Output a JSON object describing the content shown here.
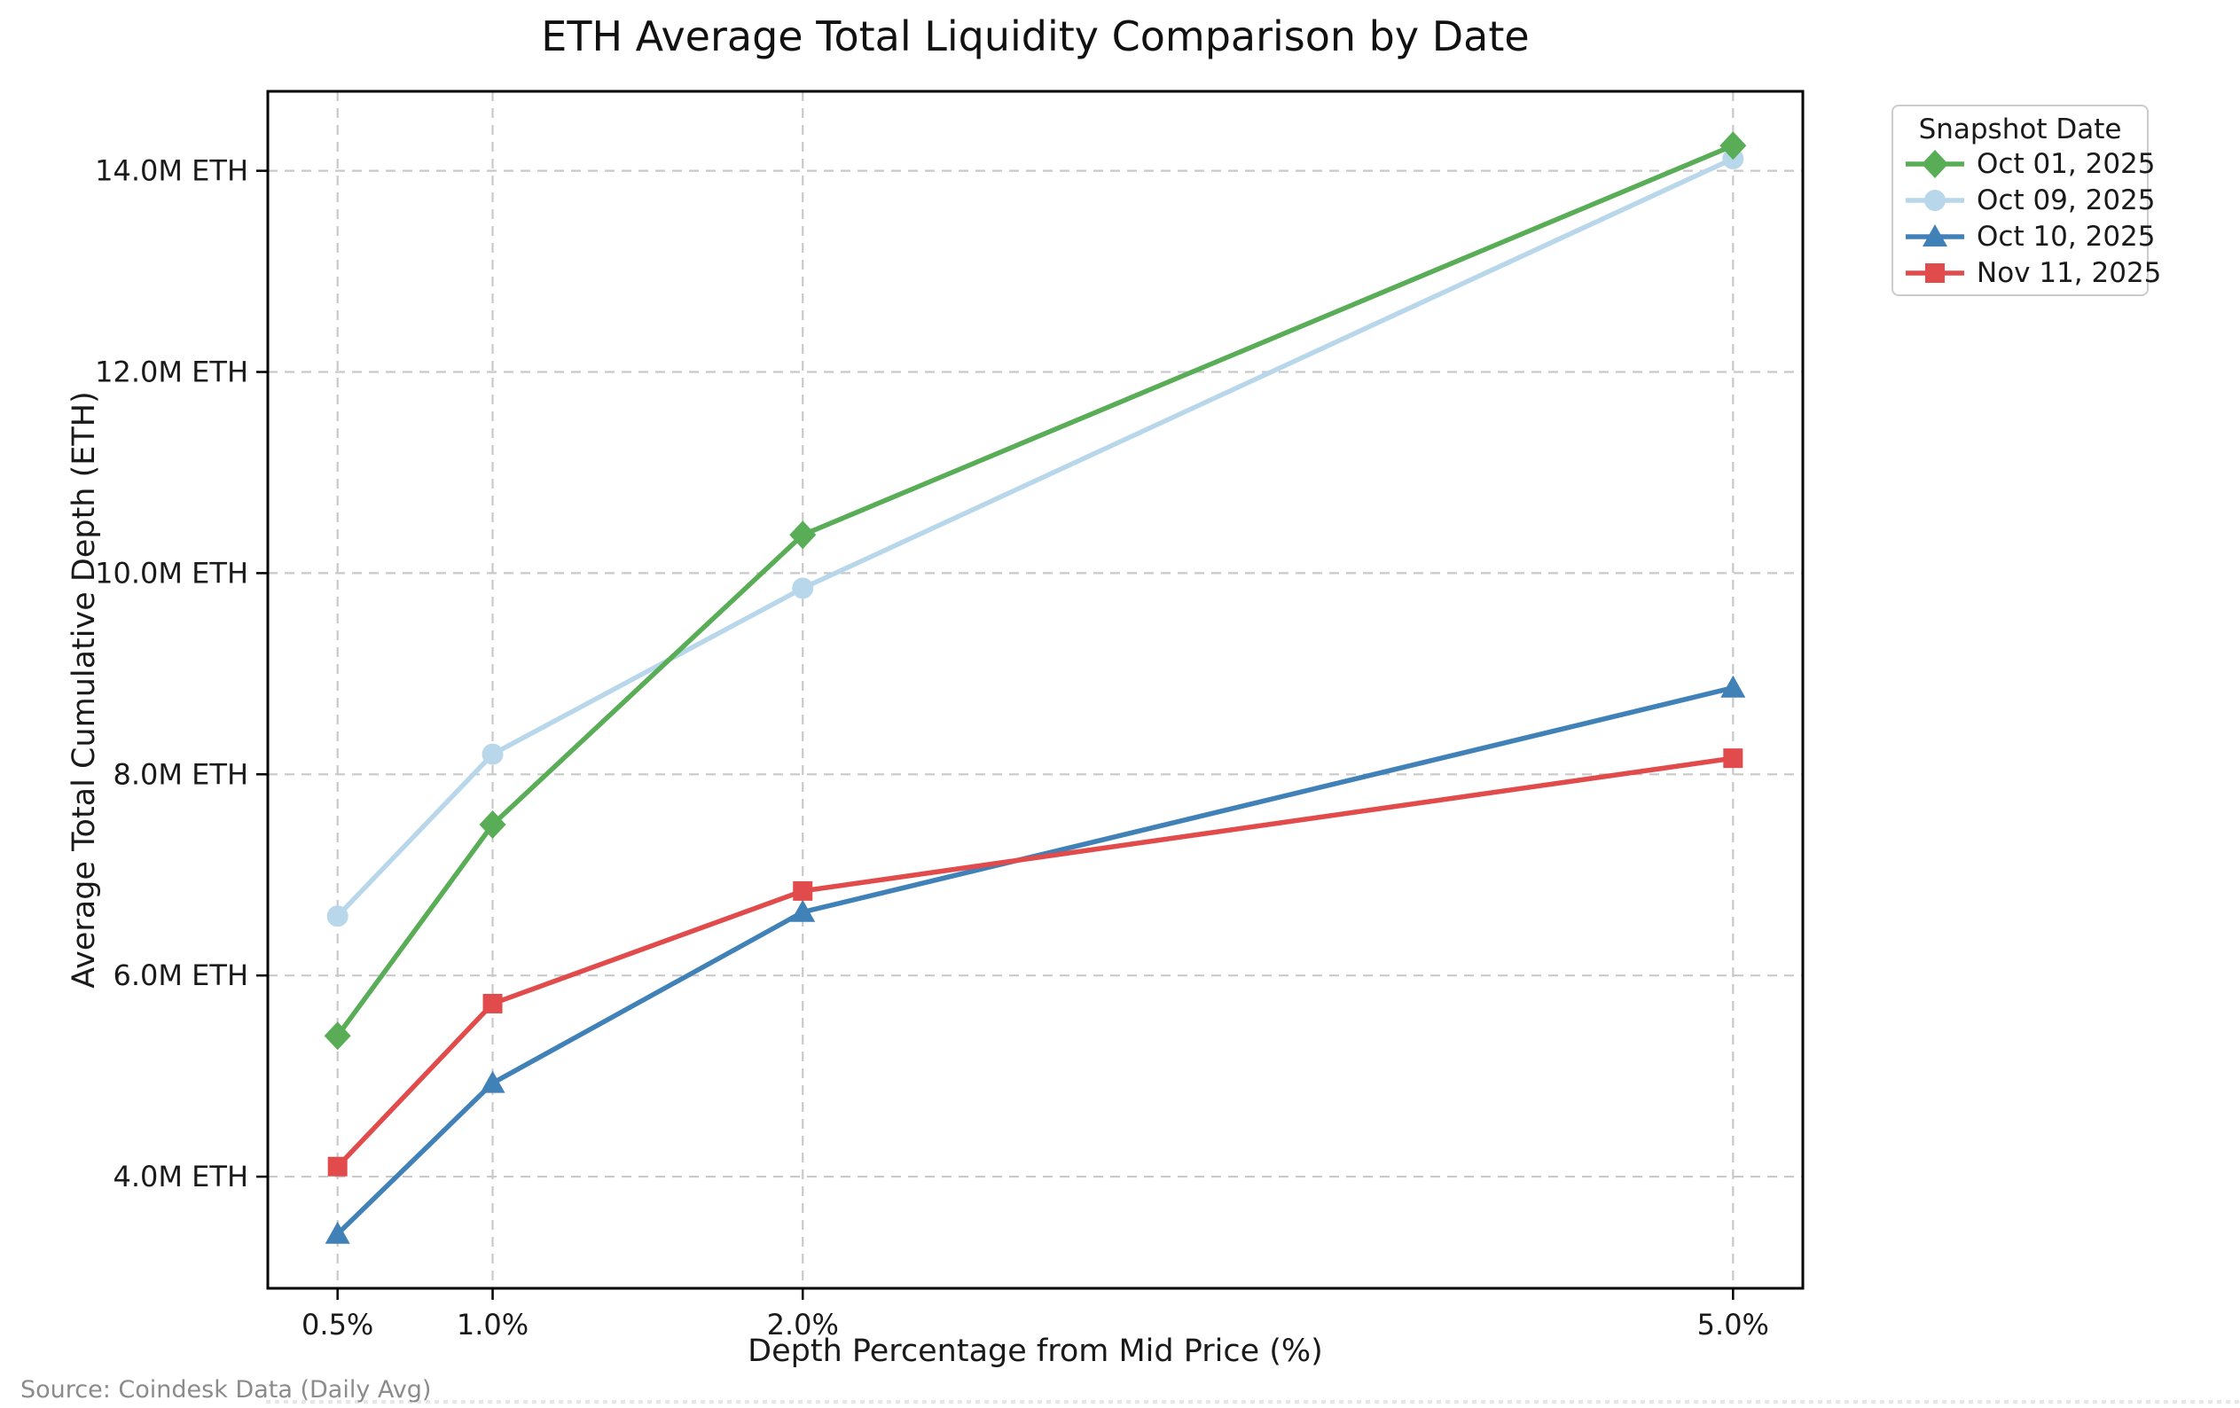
{
  "chart_data": {
    "type": "line",
    "title": "ETH Average Total Liquidity Comparison by Date",
    "xlabel": "Depth Percentage from Mid Price (%)",
    "ylabel": "Average Total Cumulative Depth (ETH)",
    "legend_title": "Snapshot Date",
    "legend_position": "outside upper right",
    "grid": true,
    "grid_style": "dashed",
    "x": [
      0.5,
      1.0,
      2.0,
      5.0
    ],
    "x_tick_labels": [
      "0.5%",
      "1.0%",
      "2.0%",
      "5.0%"
    ],
    "xlim": [
      0.275,
      5.225
    ],
    "y_unit": "M ETH",
    "y_ticks": [
      4.0,
      6.0,
      8.0,
      10.0,
      12.0,
      14.0
    ],
    "y_tick_labels": [
      "4.0M ETH",
      "6.0M ETH",
      "8.0M ETH",
      "10.0M ETH",
      "12.0M ETH",
      "14.0M ETH"
    ],
    "ylim": [
      2.89,
      14.79
    ],
    "series": [
      {
        "name": "Oct 01, 2025",
        "color": "#58ad56",
        "marker": "diamond",
        "values": [
          5.4,
          7.5,
          10.38,
          14.25
        ]
      },
      {
        "name": "Oct 09, 2025",
        "color": "#b9d7ea",
        "marker": "circle",
        "values": [
          6.59,
          8.2,
          9.85,
          14.12
        ]
      },
      {
        "name": "Oct 10, 2025",
        "color": "#4081b7",
        "marker": "triangle",
        "values": [
          3.43,
          4.93,
          6.63,
          8.86
        ]
      },
      {
        "name": "Nov 11, 2025",
        "color": "#e24b4b",
        "marker": "square",
        "values": [
          4.1,
          5.72,
          6.84,
          8.16
        ]
      }
    ]
  },
  "source_note": "Source: Coindesk Data (Daily Avg)"
}
